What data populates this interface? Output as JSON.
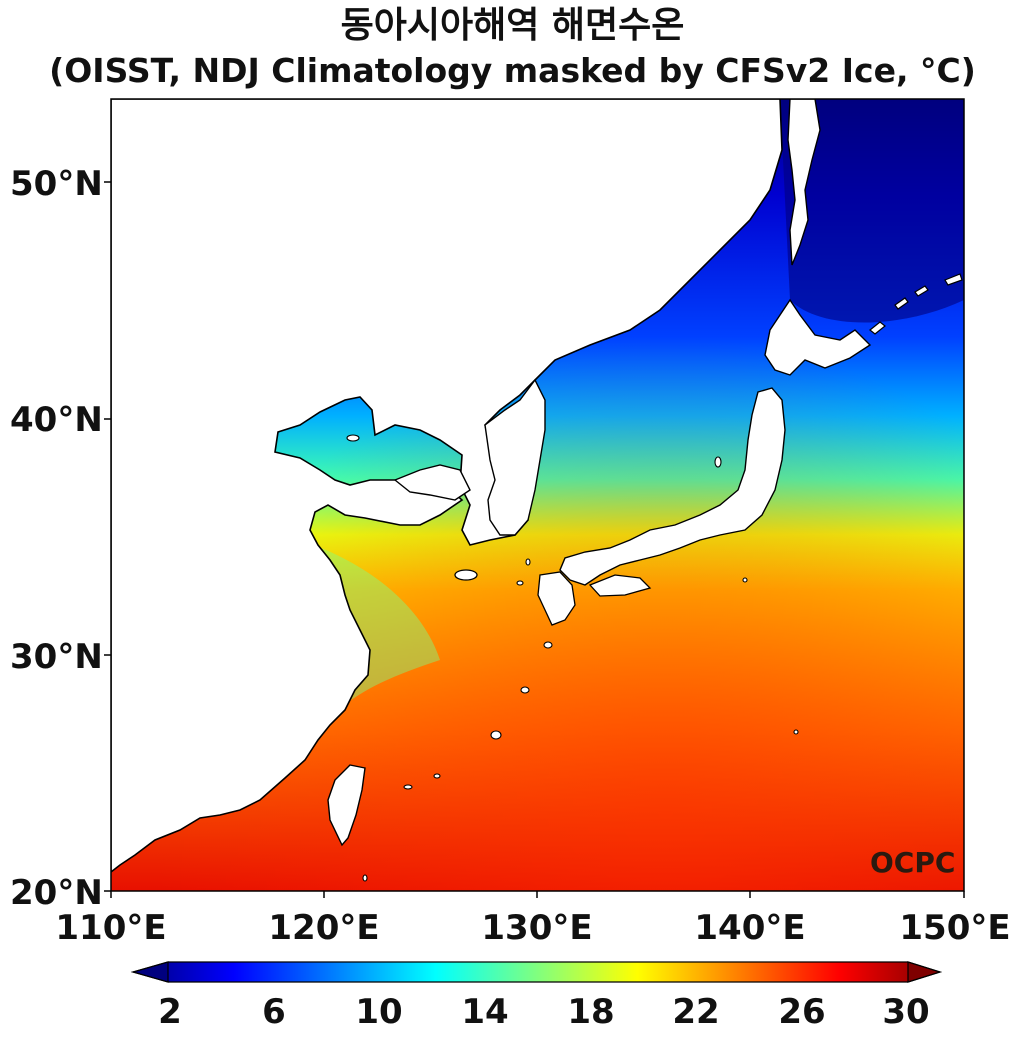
{
  "header": {
    "title": "동아시아해역 해면수온",
    "subtitle": "(OISST, NDJ Climatology masked by CFSv2 Ice, °C)"
  },
  "map": {
    "lat_labels": [
      "50°N",
      "40°N",
      "30°N",
      "20°N"
    ],
    "lon_labels": [
      "110°E",
      "120°E",
      "130°E",
      "140°E",
      "150°E"
    ],
    "lat_range": [
      20,
      53.5
    ],
    "lon_range": [
      110,
      150
    ],
    "watermark": "OCPC"
  },
  "colorbar": {
    "ticks": [
      "2",
      "6",
      "10",
      "14",
      "18",
      "22",
      "26",
      "30"
    ],
    "range": [
      2,
      30
    ],
    "extend": "both",
    "colormap": "jet",
    "colors": {
      "dark_blue": "#00007f",
      "blue": "#0000ff",
      "cyan": "#00ffff",
      "yellow": "#ffff00",
      "red": "#ff0000",
      "dark_red": "#7f0000"
    }
  }
}
